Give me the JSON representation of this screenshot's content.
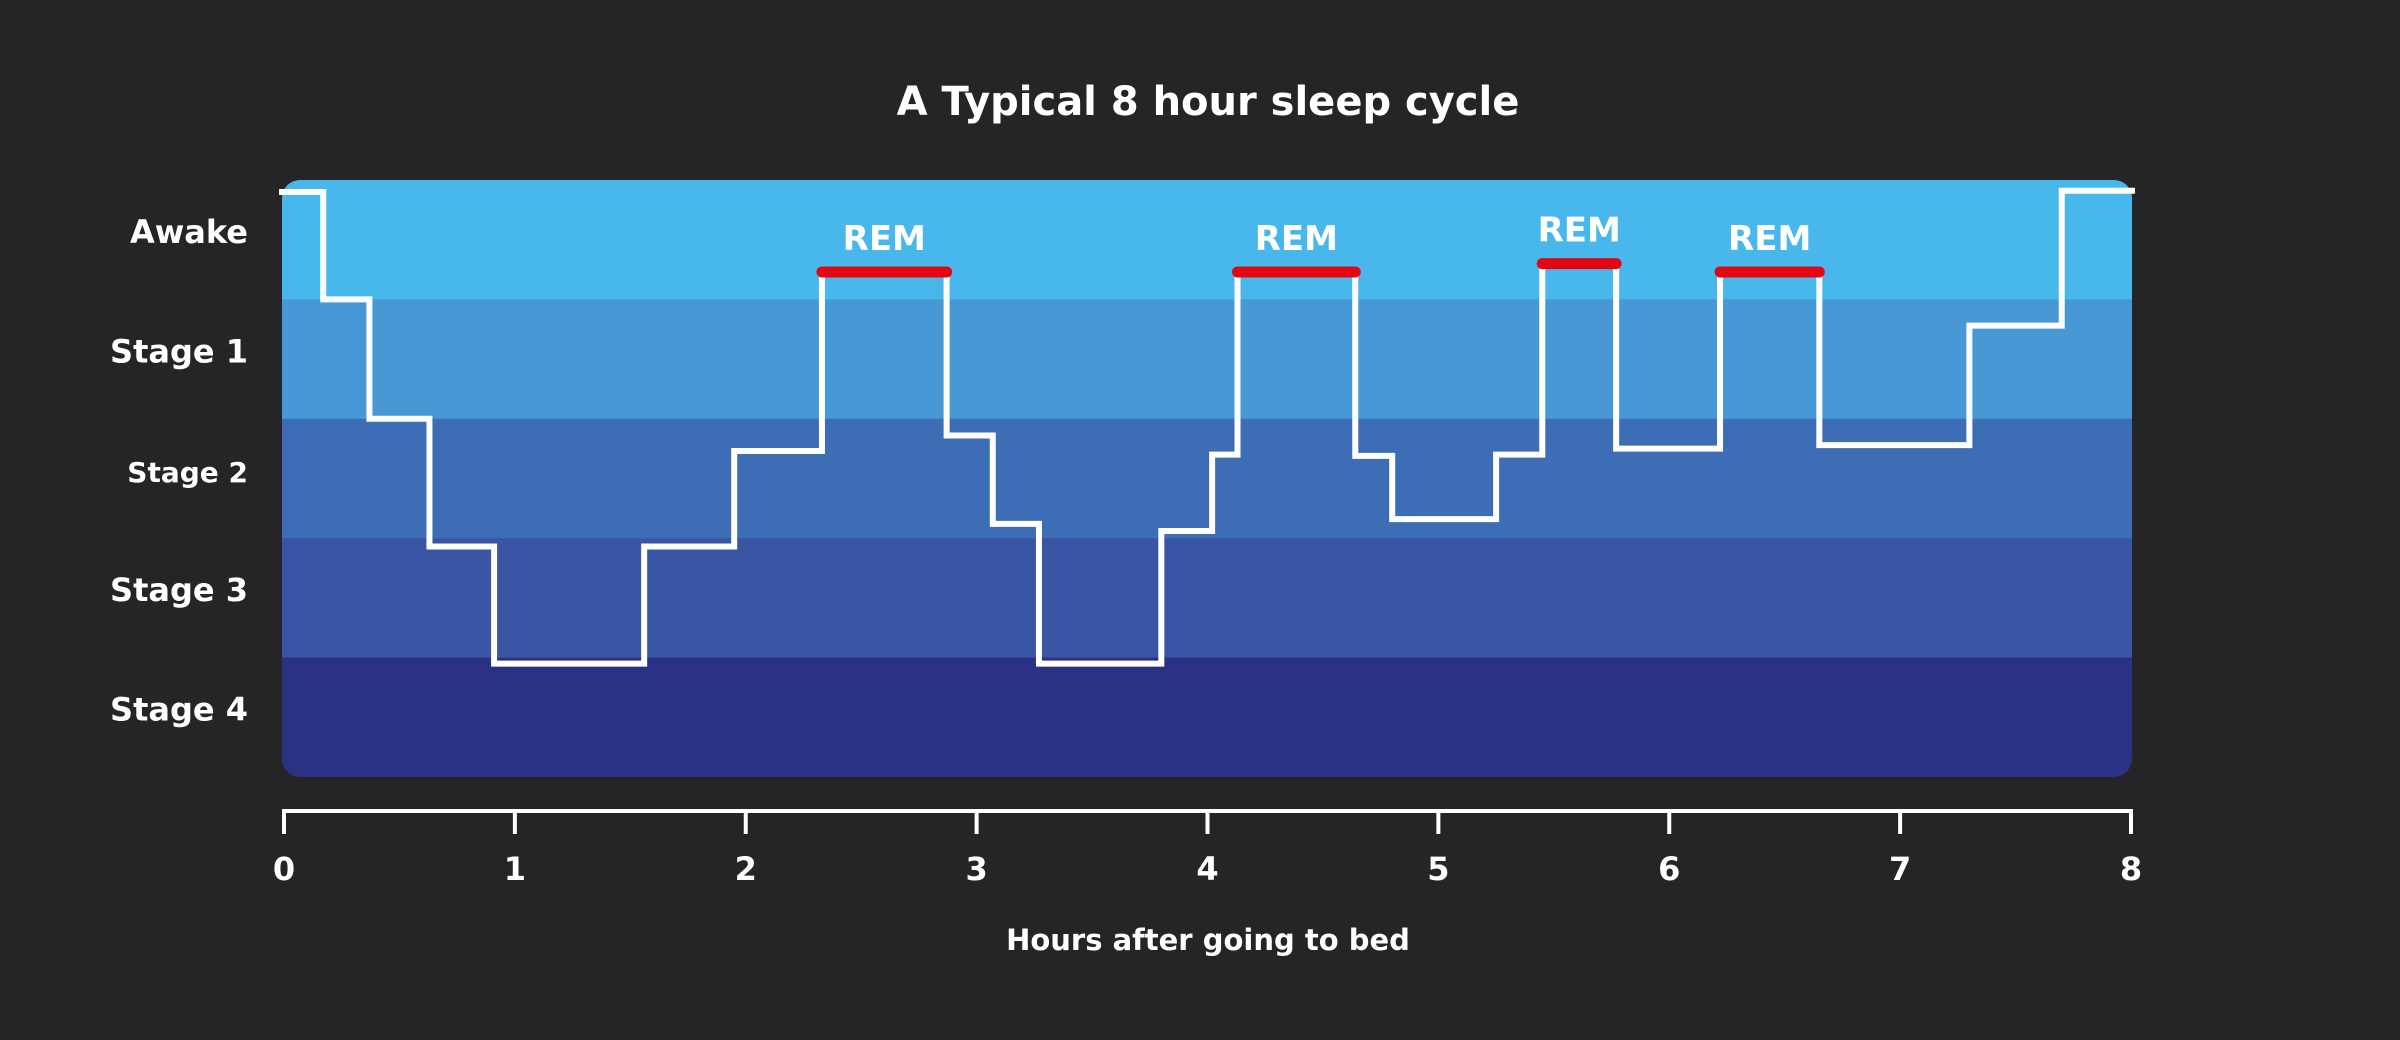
{
  "chart_data": {
    "type": "line",
    "step": true,
    "title": "A Typical 8 hour sleep cycle",
    "xlabel": "Hours after going to bed",
    "ylabel": "",
    "xlim": [
      0,
      8
    ],
    "x_ticks": [
      "0",
      "1",
      "2",
      "3",
      "4",
      "5",
      "6",
      "7",
      "8"
    ],
    "stages": [
      {
        "label": "Awake",
        "color": "#48b8ec"
      },
      {
        "label": "Stage 1",
        "color": "#4798d4"
      },
      {
        "label": "Stage 2",
        "color": "#3d6db5"
      },
      {
        "label": "Stage 3",
        "color": "#3a55a4"
      },
      {
        "label": "Stage 4",
        "color": "#2a3283"
      }
    ],
    "line_color": "#ffffff",
    "rem_color": "#e30613",
    "hypnogram": [
      {
        "x": 0,
        "stage": 0.1
      },
      {
        "x": 0.17,
        "stage": 1
      },
      {
        "x": 0.37,
        "stage": 2
      },
      {
        "x": 0.63,
        "stage": 3.07
      },
      {
        "x": 0.91,
        "stage": 4.05
      },
      {
        "x": 1.56,
        "stage": 3.07
      },
      {
        "x": 1.95,
        "stage": 2.27
      },
      {
        "x": 2.33,
        "stage": 0.77
      },
      {
        "x": 2.87,
        "stage": 2.14
      },
      {
        "x": 3.07,
        "stage": 2.88
      },
      {
        "x": 3.27,
        "stage": 4.05
      },
      {
        "x": 3.8,
        "stage": 2.94
      },
      {
        "x": 4.02,
        "stage": 2.3
      },
      {
        "x": 4.13,
        "stage": 0.77
      },
      {
        "x": 4.64,
        "stage": 2.31
      },
      {
        "x": 4.8,
        "stage": 2.84
      },
      {
        "x": 5.25,
        "stage": 2.3
      },
      {
        "x": 5.45,
        "stage": 0.7
      },
      {
        "x": 5.77,
        "stage": 2.25
      },
      {
        "x": 6.22,
        "stage": 0.77
      },
      {
        "x": 6.65,
        "stage": 2.22
      },
      {
        "x": 7.3,
        "stage": 1.22
      },
      {
        "x": 7.7,
        "stage": 0.09
      },
      {
        "x": 8,
        "stage": 0.09
      }
    ],
    "rem_periods": [
      {
        "label": "REM",
        "start": 2.33,
        "end": 2.87,
        "stage": 0.77
      },
      {
        "label": "REM",
        "start": 4.13,
        "end": 4.64,
        "stage": 0.77
      },
      {
        "label": "REM",
        "start": 5.45,
        "end": 5.77,
        "stage": 0.7
      },
      {
        "label": "REM",
        "start": 6.22,
        "end": 6.65,
        "stage": 0.77
      }
    ]
  }
}
